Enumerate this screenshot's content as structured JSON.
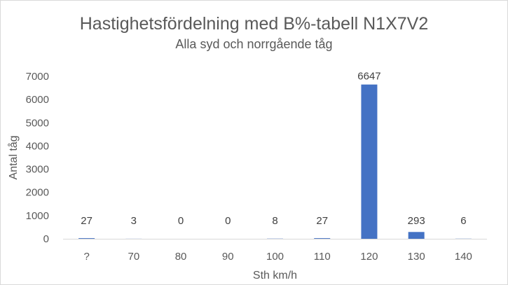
{
  "chart_data": {
    "type": "bar",
    "title": "Hastighetsfördelning med B%-tabell N1X7V2",
    "subtitle": "Alla syd och norrgående tåg",
    "xlabel": "Sth km/h",
    "ylabel": "Antal tåg",
    "categories": [
      "?",
      "70",
      "80",
      "90",
      "100",
      "110",
      "120",
      "130",
      "140"
    ],
    "values": [
      27,
      3,
      0,
      0,
      8,
      27,
      6647,
      293,
      6
    ],
    "data_labels": [
      "27",
      "3",
      "0",
      "0",
      "8",
      "27",
      "6647",
      "293",
      "6"
    ],
    "ylim": [
      0,
      7000
    ],
    "yticks": [
      "0",
      "1000",
      "2000",
      "3000",
      "4000",
      "5000",
      "6000",
      "7000"
    ],
    "grid": false,
    "legend": "none",
    "bar_color": "#4472c4"
  }
}
